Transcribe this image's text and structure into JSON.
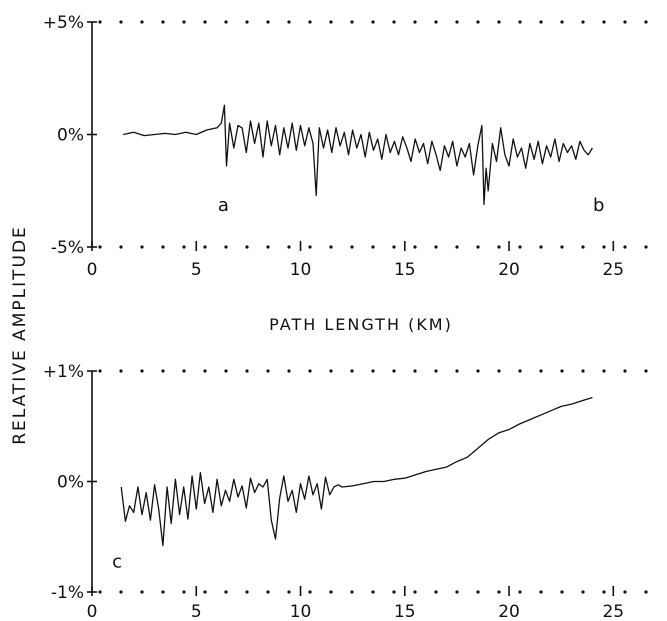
{
  "ylabel": "RELATIVE AMPLITUDE",
  "xlabel": "PATH LENGTH (KM)",
  "chart_data": [
    {
      "type": "line",
      "panel": "top",
      "xlim": [
        0,
        27
      ],
      "ylim": [
        -5,
        5
      ],
      "x_ticks": [
        0,
        5,
        10,
        15,
        20,
        25
      ],
      "x_tick_labels": [
        "0",
        "5",
        "10",
        "15",
        "20",
        "25"
      ],
      "y_ticks": [
        5,
        0,
        -5
      ],
      "y_tick_labels": [
        "+5%",
        "0%",
        "-5%"
      ],
      "annotations": [
        {
          "text": "a",
          "x": 6.3,
          "y": -3.4
        },
        {
          "text": "b",
          "x": 24.3,
          "y": -3.4
        }
      ],
      "series": [
        {
          "x": [
            1.5,
            2.0,
            2.5,
            3.0,
            3.5,
            4.0,
            4.5,
            5.0,
            5.5,
            6.0,
            6.2,
            6.35,
            6.45,
            6.6,
            6.8,
            7.0,
            7.2,
            7.4,
            7.6,
            7.8,
            8.0,
            8.2,
            8.4,
            8.6,
            8.8,
            9.0,
            9.2,
            9.4,
            9.6,
            9.8,
            10.0,
            10.2,
            10.4,
            10.6,
            10.75,
            10.9,
            11.1,
            11.3,
            11.5,
            11.7,
            11.9,
            12.1,
            12.3,
            12.5,
            12.7,
            12.9,
            13.1,
            13.3,
            13.5,
            13.7,
            13.9,
            14.1,
            14.3,
            14.5,
            14.7,
            14.9,
            15.1,
            15.3,
            15.5,
            15.7,
            15.9,
            16.1,
            16.3,
            16.5,
            16.7,
            16.9,
            17.1,
            17.3,
            17.5,
            17.7,
            17.9,
            18.1,
            18.3,
            18.5,
            18.7,
            18.8,
            18.9,
            19.0,
            19.2,
            19.4,
            19.6,
            19.8,
            20.0,
            20.2,
            20.4,
            20.6,
            20.8,
            21.0,
            21.2,
            21.4,
            21.6,
            21.8,
            22.0,
            22.2,
            22.4,
            22.6,
            22.8,
            23.0,
            23.2,
            23.4,
            23.6,
            23.8,
            24.0
          ],
          "y": [
            0.0,
            0.1,
            -0.05,
            0.0,
            0.05,
            0.0,
            0.1,
            0.0,
            0.2,
            0.3,
            0.5,
            1.3,
            -1.4,
            0.5,
            -0.6,
            0.4,
            0.3,
            -0.8,
            0.6,
            -0.4,
            0.5,
            -1.0,
            0.6,
            -0.5,
            0.4,
            -0.9,
            0.3,
            -0.6,
            0.5,
            -0.7,
            0.4,
            -0.5,
            0.3,
            -0.4,
            -2.7,
            0.3,
            -0.6,
            0.2,
            -0.8,
            0.3,
            -0.5,
            0.1,
            -0.9,
            0.2,
            -0.6,
            0.0,
            -1.0,
            0.1,
            -0.7,
            -0.2,
            -1.1,
            0.0,
            -0.8,
            -0.3,
            -0.9,
            -0.1,
            -0.6,
            -1.2,
            -0.2,
            -0.8,
            -0.4,
            -1.3,
            -0.3,
            -0.9,
            -1.6,
            -0.5,
            -1.0,
            -0.3,
            -1.4,
            -0.6,
            -1.0,
            -0.4,
            -1.8,
            -0.5,
            0.4,
            -3.1,
            -1.5,
            -2.5,
            -0.4,
            -1.2,
            0.3,
            -0.9,
            -1.4,
            -0.2,
            -1.0,
            -0.6,
            -1.5,
            -0.4,
            -1.1,
            -0.3,
            -1.3,
            -0.5,
            -1.0,
            -0.2,
            -1.2,
            -0.4,
            -0.8,
            -0.5,
            -1.1,
            -0.3,
            -0.7,
            -0.9,
            -0.6
          ]
        }
      ]
    },
    {
      "type": "line",
      "panel": "bottom",
      "xlim": [
        0,
        27
      ],
      "ylim": [
        -1,
        1
      ],
      "x_ticks": [
        0,
        5,
        10,
        15,
        20,
        25
      ],
      "x_tick_labels": [
        "0",
        "5",
        "10",
        "15",
        "20",
        "25"
      ],
      "y_ticks": [
        1,
        0,
        -1
      ],
      "y_tick_labels": [
        "+1%",
        "0%",
        "-1%"
      ],
      "annotations": [
        {
          "text": "c",
          "x": 1.2,
          "y": -0.78
        }
      ],
      "series": [
        {
          "x": [
            1.4,
            1.6,
            1.8,
            2.0,
            2.2,
            2.4,
            2.6,
            2.8,
            3.0,
            3.2,
            3.4,
            3.6,
            3.8,
            4.0,
            4.2,
            4.4,
            4.6,
            4.8,
            5.0,
            5.2,
            5.4,
            5.6,
            5.8,
            6.0,
            6.2,
            6.4,
            6.6,
            6.8,
            7.0,
            7.2,
            7.4,
            7.6,
            7.8,
            8.0,
            8.2,
            8.4,
            8.6,
            8.8,
            9.0,
            9.2,
            9.4,
            9.6,
            9.8,
            10.0,
            10.2,
            10.4,
            10.6,
            10.8,
            11.0,
            11.2,
            11.4,
            11.6,
            11.8,
            12.0,
            12.5,
            13.0,
            13.5,
            14.0,
            14.5,
            15.0,
            15.5,
            16.0,
            16.5,
            17.0,
            17.5,
            18.0,
            18.5,
            19.0,
            19.5,
            20.0,
            20.5,
            21.0,
            21.5,
            22.0,
            22.5,
            23.0,
            23.5,
            24.0
          ],
          "y": [
            -0.05,
            -0.36,
            -0.22,
            -0.28,
            -0.05,
            -0.3,
            -0.1,
            -0.35,
            -0.03,
            -0.25,
            -0.58,
            -0.05,
            -0.38,
            0.02,
            -0.3,
            -0.05,
            -0.34,
            0.05,
            -0.25,
            0.08,
            -0.2,
            -0.05,
            -0.28,
            0.02,
            -0.22,
            -0.08,
            -0.18,
            0.02,
            -0.14,
            -0.04,
            -0.24,
            0.03,
            -0.1,
            -0.02,
            -0.05,
            0.02,
            -0.35,
            -0.52,
            -0.15,
            0.05,
            -0.18,
            -0.08,
            -0.28,
            -0.02,
            -0.16,
            0.05,
            -0.12,
            -0.02,
            -0.25,
            0.04,
            -0.12,
            -0.05,
            -0.03,
            -0.05,
            -0.04,
            -0.02,
            0.0,
            0.0,
            0.02,
            0.03,
            0.06,
            0.09,
            0.11,
            0.13,
            0.18,
            0.22,
            0.3,
            0.38,
            0.44,
            0.47,
            0.52,
            0.56,
            0.6,
            0.64,
            0.68,
            0.7,
            0.73,
            0.76
          ]
        }
      ]
    }
  ]
}
